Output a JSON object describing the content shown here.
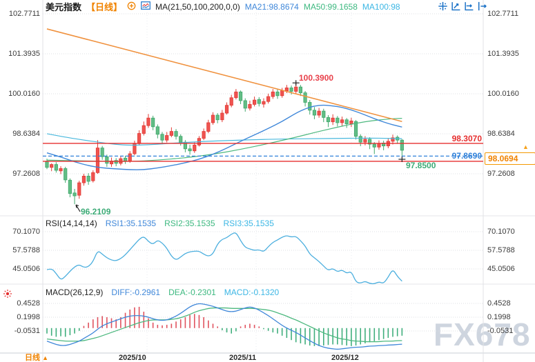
{
  "header": {
    "symbol": "美元指数",
    "period_tag": "【日线】",
    "ma_settings": "MA(21,50,100,200,0,0)",
    "ma21": "MA21:98.8674",
    "ma50": "MA50:99.1658",
    "ma100": "MA100:98"
  },
  "rsi_header": {
    "title": "RSI(14,14,14)",
    "rsi1": "RSI1:35.1535",
    "rsi2": "RSI2:35.1535",
    "rsi3": "RSI3:35.1535"
  },
  "macd_header": {
    "title": "MACD(26,12,9)",
    "diff": "DIFF:-0.2961",
    "dea": "DEA:-0.2301",
    "macd": "MACD:-0.1320"
  },
  "axes": {
    "main": [
      "102.7711",
      "101.3935",
      "100.0160",
      "98.6384",
      "97.2608"
    ],
    "rsi": [
      "70.1070",
      "57.5788",
      "45.0506"
    ],
    "macd": [
      "0.4528",
      "0.1998",
      "-0.0531"
    ],
    "x_labels": [
      "2025/10",
      "2025/11",
      "2025/12"
    ]
  },
  "annotations": {
    "high": "100.3900",
    "low": "96.2109",
    "swing_low": "97.8500",
    "resistance": "98.3070",
    "pivot": "97.8690",
    "price_tag": "98.0694",
    "tag_arrow": "▲"
  },
  "footer": {
    "period_label": "日线",
    "arrow": "▲"
  },
  "watermark": "FX678",
  "icons": {
    "toolbar": [
      "crosshair-icon",
      "axis-zoom-icon",
      "axis-pan-icon",
      "jump-to-latest-icon"
    ],
    "header": [
      "plus-circle-icon",
      "mini-chart-icon"
    ],
    "left_gutter": [
      "sun-badge-icon"
    ]
  },
  "colors": {
    "up": "#ef5350",
    "up_stroke": "#e23b35",
    "down": "#63bd85",
    "down_stroke": "#3fa86c",
    "ma21": "#3f87d9",
    "ma50": "#4cb87e",
    "ma100": "#49b8dd",
    "trend": "#f0923f",
    "level_red": "#e62e2e",
    "level_blue": "#2f80d9",
    "rsi": "#4aaede",
    "macd_diff": "#3f87d9",
    "macd_dea": "#4cb87e",
    "hist_up": "#e0525e",
    "hist_down": "#3fae7c",
    "accent": "#f08300",
    "marker": "#222222"
  },
  "chart_data": {
    "type": "candlestick",
    "title": "美元指数 日线",
    "x_months": [
      "2025/10",
      "2025/11",
      "2025/12"
    ],
    "main_ylim": [
      96.1,
      102.7711
    ],
    "main_ticks": [
      102.7711,
      101.3935,
      100.016,
      98.6384,
      97.2608
    ],
    "price": {
      "candles": [
        [
          97.68,
          97.78,
          97.42,
          97.48
        ],
        [
          97.48,
          97.62,
          97.35,
          97.58
        ],
        [
          97.58,
          97.66,
          97.3,
          97.38
        ],
        [
          97.36,
          97.52,
          97.25,
          97.44
        ],
        [
          97.44,
          97.5,
          96.95,
          97.05
        ],
        [
          97.04,
          97.1,
          96.45,
          96.58
        ],
        [
          96.6,
          96.74,
          96.21,
          96.5
        ],
        [
          96.52,
          97.02,
          96.4,
          96.95
        ],
        [
          96.95,
          97.26,
          96.85,
          97.18
        ],
        [
          97.18,
          97.28,
          96.88,
          97.0
        ],
        [
          97.02,
          97.38,
          96.96,
          97.3
        ],
        [
          97.3,
          98.42,
          97.26,
          98.15
        ],
        [
          98.15,
          98.22,
          97.74,
          97.85
        ],
        [
          97.85,
          97.92,
          97.5,
          97.62
        ],
        [
          97.6,
          97.82,
          97.5,
          97.7
        ],
        [
          97.72,
          97.8,
          97.52,
          97.62
        ],
        [
          97.62,
          97.86,
          97.55,
          97.78
        ],
        [
          97.8,
          97.88,
          97.6,
          97.7
        ],
        [
          97.7,
          98.04,
          97.64,
          97.95
        ],
        [
          97.95,
          98.4,
          97.9,
          98.3
        ],
        [
          98.3,
          98.76,
          98.24,
          98.65
        ],
        [
          98.65,
          99.06,
          98.58,
          98.92
        ],
        [
          98.92,
          99.32,
          98.84,
          99.18
        ],
        [
          99.18,
          99.26,
          98.76,
          98.88
        ],
        [
          98.88,
          98.96,
          98.48,
          98.62
        ],
        [
          98.62,
          98.7,
          98.28,
          98.42
        ],
        [
          98.42,
          98.7,
          98.34,
          98.58
        ],
        [
          98.58,
          98.86,
          98.52,
          98.72
        ],
        [
          98.72,
          98.8,
          98.44,
          98.55
        ],
        [
          98.55,
          98.62,
          98.23,
          98.35
        ],
        [
          98.35,
          98.42,
          98.0,
          98.12
        ],
        [
          98.12,
          98.26,
          97.92,
          98.05
        ],
        [
          98.05,
          98.34,
          97.98,
          98.25
        ],
        [
          98.25,
          98.56,
          98.2,
          98.48
        ],
        [
          98.48,
          98.82,
          98.42,
          98.72
        ],
        [
          98.72,
          99.12,
          98.66,
          99.02
        ],
        [
          99.02,
          99.38,
          98.95,
          99.28
        ],
        [
          99.28,
          99.35,
          99.0,
          99.12
        ],
        [
          99.12,
          99.46,
          99.04,
          99.35
        ],
        [
          99.35,
          99.72,
          99.3,
          99.62
        ],
        [
          99.62,
          99.98,
          99.55,
          99.88
        ],
        [
          99.88,
          100.18,
          99.82,
          100.08
        ],
        [
          100.08,
          100.13,
          99.66,
          99.78
        ],
        [
          99.78,
          99.86,
          99.4,
          99.52
        ],
        [
          99.52,
          99.78,
          99.44,
          99.65
        ],
        [
          99.65,
          99.92,
          99.58,
          99.8
        ],
        [
          99.82,
          99.9,
          99.58,
          99.68
        ],
        [
          99.66,
          99.86,
          99.54,
          99.75
        ],
        [
          99.75,
          100.02,
          99.68,
          99.92
        ],
        [
          99.92,
          100.18,
          99.84,
          100.08
        ],
        [
          100.08,
          100.16,
          99.84,
          99.95
        ],
        [
          99.95,
          100.22,
          99.88,
          100.12
        ],
        [
          100.12,
          100.32,
          100.04,
          100.22
        ],
        [
          100.22,
          100.3,
          99.99,
          100.1
        ],
        [
          100.1,
          100.39,
          100.01,
          100.25
        ],
        [
          100.25,
          100.32,
          99.94,
          100.05
        ],
        [
          100.05,
          100.11,
          99.58,
          99.72
        ],
        [
          99.72,
          99.8,
          99.3,
          99.45
        ],
        [
          99.45,
          99.56,
          99.14,
          99.28
        ],
        [
          99.28,
          99.53,
          99.19,
          99.42
        ],
        [
          99.42,
          99.5,
          99.04,
          99.2
        ],
        [
          99.2,
          99.28,
          98.87,
          99.05
        ],
        [
          99.05,
          99.31,
          98.94,
          99.18
        ],
        [
          99.18,
          99.25,
          98.89,
          99.02
        ],
        [
          99.02,
          99.23,
          98.91,
          99.12
        ],
        [
          99.12,
          99.18,
          98.84,
          98.98
        ],
        [
          98.98,
          99.19,
          98.87,
          99.08
        ],
        [
          99.06,
          99.11,
          98.44,
          98.55
        ],
        [
          98.55,
          98.62,
          98.21,
          98.35
        ],
        [
          98.35,
          98.56,
          98.24,
          98.45
        ],
        [
          98.45,
          98.52,
          98.11,
          98.28
        ],
        [
          98.28,
          98.35,
          97.94,
          98.18
        ],
        [
          98.18,
          98.41,
          98.09,
          98.3
        ],
        [
          98.32,
          98.4,
          98.07,
          98.22
        ],
        [
          98.22,
          98.49,
          98.14,
          98.38
        ],
        [
          98.38,
          98.61,
          98.27,
          98.5
        ],
        [
          98.52,
          98.58,
          98.29,
          98.42
        ],
        [
          98.42,
          98.45,
          97.85,
          98.07
        ]
      ],
      "ma21_points": [
        [
          0,
          97.98
        ],
        [
          3,
          97.84
        ],
        [
          6,
          97.67
        ],
        [
          9,
          97.54
        ],
        [
          12,
          97.46
        ],
        [
          15,
          97.43
        ],
        [
          18,
          97.4
        ],
        [
          21,
          97.4
        ],
        [
          24,
          97.46
        ],
        [
          27,
          97.54
        ],
        [
          30,
          97.64
        ],
        [
          33,
          97.76
        ],
        [
          36,
          97.93
        ],
        [
          39,
          98.14
        ],
        [
          42,
          98.38
        ],
        [
          45,
          98.6
        ],
        [
          48,
          98.82
        ],
        [
          51,
          99.06
        ],
        [
          54,
          99.35
        ],
        [
          56,
          99.5
        ],
        [
          58,
          99.6
        ],
        [
          60,
          99.63
        ],
        [
          62,
          99.6
        ],
        [
          64,
          99.55
        ],
        [
          66,
          99.46
        ],
        [
          68,
          99.35
        ],
        [
          70,
          99.22
        ],
        [
          72,
          99.1
        ],
        [
          74,
          98.99
        ],
        [
          76,
          98.91
        ],
        [
          77,
          98.87
        ]
      ],
      "ma50_points": [
        [
          0,
          97.73
        ],
        [
          6,
          97.71
        ],
        [
          12,
          97.69
        ],
        [
          18,
          97.68
        ],
        [
          24,
          97.73
        ],
        [
          30,
          97.81
        ],
        [
          36,
          97.93
        ],
        [
          42,
          98.1
        ],
        [
          48,
          98.3
        ],
        [
          54,
          98.52
        ],
        [
          58,
          98.68
        ],
        [
          62,
          98.83
        ],
        [
          66,
          98.97
        ],
        [
          70,
          99.08
        ],
        [
          73,
          99.13
        ],
        [
          75,
          99.16
        ],
        [
          77,
          99.17
        ]
      ],
      "ma100_points": [
        [
          0,
          98.64
        ],
        [
          4,
          98.52
        ],
        [
          8,
          98.42
        ],
        [
          12,
          98.33
        ],
        [
          15,
          98.27
        ],
        [
          18,
          98.24
        ],
        [
          22,
          98.26
        ],
        [
          26,
          98.3
        ],
        [
          30,
          98.34
        ],
        [
          35,
          98.38
        ],
        [
          40,
          98.41
        ],
        [
          46,
          98.44
        ],
        [
          52,
          98.46
        ],
        [
          58,
          98.47
        ],
        [
          64,
          98.48
        ],
        [
          70,
          98.49
        ],
        [
          74,
          98.48
        ],
        [
          77,
          98.47
        ]
      ],
      "trendline": {
        "i1": 0,
        "p1": 102.25,
        "i2": 77,
        "p2": 99.06
      },
      "levels": [
        {
          "price": 98.307,
          "label": "98.3070",
          "style": "resistance"
        },
        {
          "price": 97.869,
          "label": "97.8690",
          "style": "pivot-dashed"
        },
        {
          "price": 97.69,
          "label": "",
          "style": "support"
        }
      ],
      "markers": {
        "high": {
          "index": 54,
          "price": 100.39,
          "label": "100.3900"
        },
        "low": {
          "index": 6,
          "price": 96.2109,
          "label": "96.2109"
        },
        "swing_low": {
          "index": 77,
          "price": 97.85,
          "label": "97.8500"
        },
        "last_price": 98.0694
      }
    },
    "rsi": {
      "ticks": [
        70.107,
        57.5788,
        45.0506
      ],
      "values": [
        44.5,
        45.5,
        42,
        37.5,
        40,
        43.5,
        46.5,
        48,
        46,
        46.5,
        50,
        57.5,
        55,
        52.5,
        51,
        50.5,
        52,
        54.5,
        58,
        61.5,
        65,
        67,
        63.5,
        61.5,
        64.5,
        62.5,
        59,
        53.5,
        51,
        53,
        55.5,
        56.5,
        57,
        57,
        55,
        53.5,
        55,
        62,
        65,
        66,
        68.5,
        69.8,
        64,
        59.5,
        58.5,
        57.5,
        58,
        56.5,
        60,
        63,
        64.5,
        66.5,
        67.5,
        66.5,
        67,
        64,
        60.5,
        55,
        52.5,
        50,
        47,
        44,
        45.5,
        43,
        44.5,
        42,
        43.5,
        36.2,
        35.4,
        36.8,
        35.2,
        35,
        36.4,
        35.2,
        39.5,
        45,
        40,
        36.8
      ]
    },
    "macd": {
      "ticks": [
        0.4528,
        0.1998,
        -0.0531
      ],
      "diff": [
        -0.24,
        -0.27,
        -0.3,
        -0.32,
        -0.32,
        -0.3,
        -0.27,
        -0.24,
        -0.19,
        -0.14,
        -0.09,
        -0.02,
        0.04,
        0.08,
        0.11,
        0.14,
        0.17,
        0.2,
        0.22,
        0.23,
        0.23,
        0.22,
        0.2,
        0.17,
        0.15,
        0.14,
        0.15,
        0.18,
        0.22,
        0.27,
        0.33,
        0.39,
        0.43,
        0.45,
        0.44,
        0.42,
        0.4,
        0.37,
        0.34,
        0.31,
        0.3,
        0.31,
        0.34,
        0.37,
        0.39,
        0.37,
        0.33,
        0.28,
        0.23,
        0.17,
        0.11,
        0.05,
        0.0,
        -0.04,
        -0.08,
        -0.13,
        -0.18,
        -0.23,
        -0.28,
        -0.32,
        -0.35,
        -0.37,
        -0.38,
        -0.39,
        -0.38,
        -0.37,
        -0.36,
        -0.35,
        -0.35,
        -0.34,
        -0.33,
        -0.33,
        -0.32,
        -0.32,
        -0.31,
        -0.31,
        -0.3,
        -0.296
      ],
      "dea": [
        -0.2,
        -0.21,
        -0.22,
        -0.23,
        -0.24,
        -0.24,
        -0.24,
        -0.24,
        -0.23,
        -0.21,
        -0.19,
        -0.17,
        -0.14,
        -0.11,
        -0.08,
        -0.05,
        -0.02,
        0.01,
        0.04,
        0.07,
        0.1,
        0.12,
        0.14,
        0.15,
        0.15,
        0.15,
        0.15,
        0.16,
        0.17,
        0.19,
        0.22,
        0.25,
        0.29,
        0.32,
        0.34,
        0.36,
        0.37,
        0.37,
        0.37,
        0.37,
        0.36,
        0.36,
        0.36,
        0.36,
        0.36,
        0.36,
        0.35,
        0.34,
        0.33,
        0.31,
        0.28,
        0.25,
        0.22,
        0.18,
        0.15,
        0.11,
        0.07,
        0.03,
        -0.01,
        -0.05,
        -0.09,
        -0.12,
        -0.15,
        -0.18,
        -0.2,
        -0.21,
        -0.23,
        -0.24,
        -0.24,
        -0.25,
        -0.25,
        -0.25,
        -0.25,
        -0.24,
        -0.24,
        -0.24,
        -0.23,
        -0.23
      ],
      "hist": [
        -0.1,
        -0.14,
        -0.16,
        -0.15,
        -0.16,
        -0.13,
        -0.1,
        -0.05,
        0.04,
        0.1,
        0.16,
        0.2,
        0.22,
        0.2,
        0.18,
        0.16,
        0.2,
        0.28,
        0.34,
        0.38,
        0.39,
        0.3,
        0.18,
        0.1,
        0.06,
        0.05,
        0.06,
        0.08,
        0.12,
        0.16,
        0.2,
        0.24,
        0.26,
        0.24,
        0.2,
        0.14,
        0.08,
        0.03,
        -0.04,
        -0.08,
        -0.1,
        -0.06,
        0.03,
        0.06,
        0.08,
        0.06,
        0.03,
        -0.02,
        -0.05,
        -0.08,
        -0.1,
        -0.14,
        -0.18,
        -0.22,
        -0.26,
        -0.28,
        -0.3,
        -0.32,
        -0.33,
        -0.33,
        -0.32,
        -0.31,
        -0.3,
        -0.3,
        -0.31,
        -0.32,
        -0.33,
        -0.32,
        -0.3,
        -0.28,
        -0.26,
        -0.24,
        -0.22,
        -0.2,
        -0.18,
        -0.16,
        -0.15,
        -0.14
      ]
    }
  }
}
